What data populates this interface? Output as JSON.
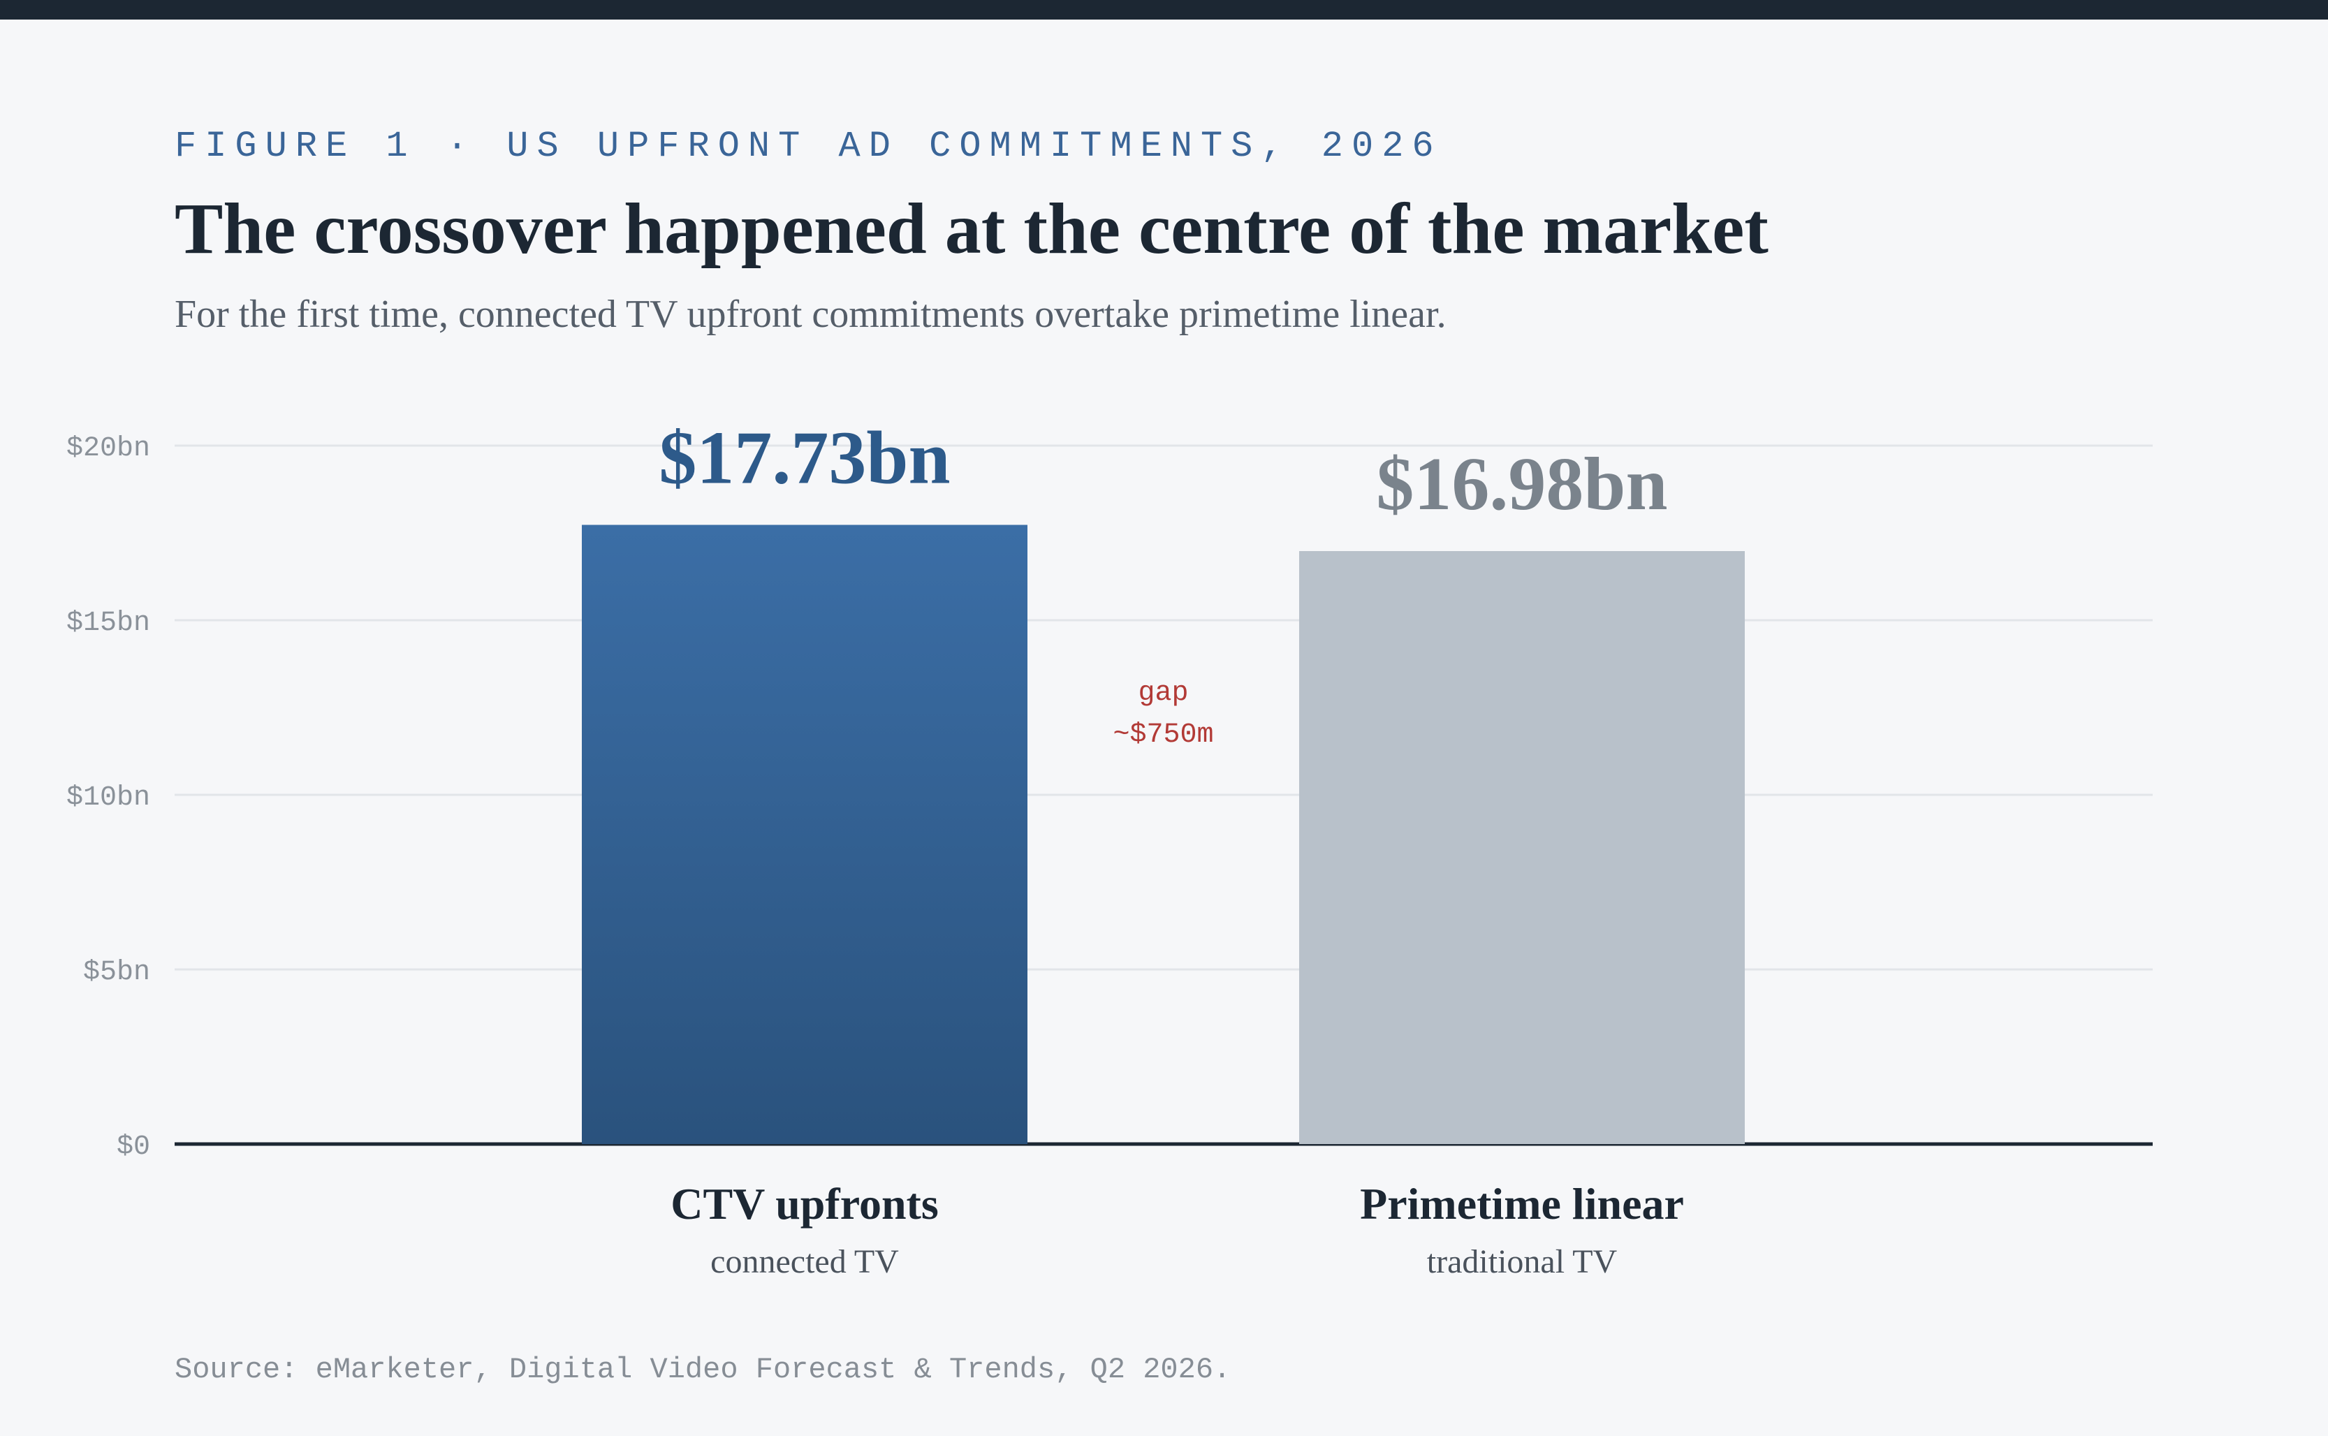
{
  "header": {
    "eyebrow": "FIGURE 1 · US UPFRONT AD COMMITMENTS, 2026",
    "title": "The crossover happened at the centre of the market",
    "subtitle": "For the first time, connected TV upfront commitments overtake primetime linear."
  },
  "source": "Source: eMarketer, Digital Video Forecast & Trends, Q2 2026.",
  "colors": {
    "ctv_top": "#3b6ea6",
    "ctv_bottom": "#2a527d",
    "ctv_label": "#2d5a8a",
    "linear_bar": "#b8c1ca",
    "linear_label": "#7a838c",
    "gap": "#b23a36",
    "axis": "#1c2733",
    "grid": "#e2e5e9"
  },
  "chart_data": {
    "type": "bar",
    "categories": [
      "CTV upfronts",
      "Primetime linear"
    ],
    "category_sublabels": [
      "connected TV",
      "traditional TV"
    ],
    "values": [
      17.73,
      16.98
    ],
    "value_labels": [
      "$17.73bn",
      "$16.98bn"
    ],
    "ylim": [
      0,
      20
    ],
    "yticks": [
      0,
      5,
      10,
      15,
      20
    ],
    "ytick_labels": [
      "$0",
      "$5bn",
      "$10bn",
      "$15bn",
      "$20bn"
    ],
    "grid": true,
    "annotation": {
      "lines": [
        "gap",
        "~$750m"
      ]
    }
  }
}
